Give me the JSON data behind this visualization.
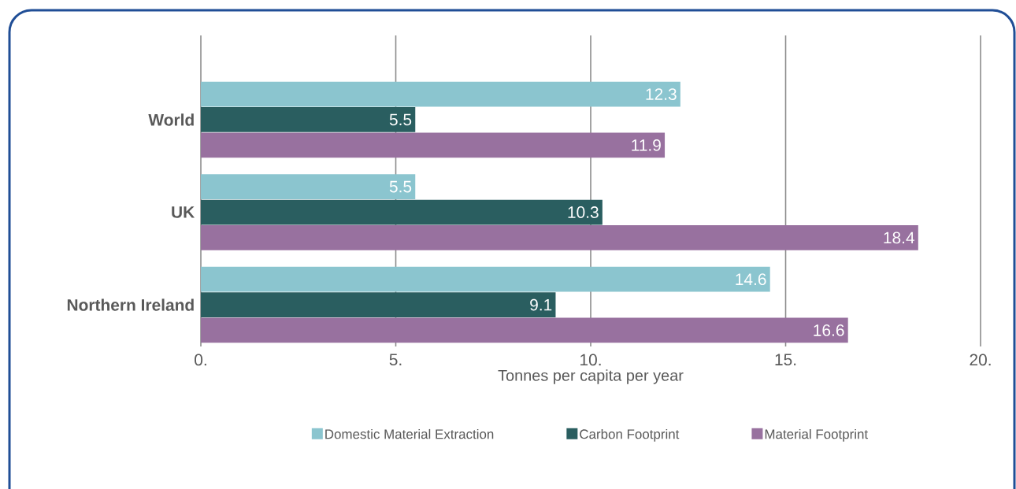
{
  "chart_data": {
    "type": "bar",
    "orientation": "horizontal",
    "xlabel": "Tonnes per capita per year",
    "categories": [
      "World",
      "UK",
      "Northern Ireland"
    ],
    "series": [
      {
        "name": "Domestic Material Extraction",
        "color": "#8bc5cf",
        "values": [
          12.3,
          5.5,
          14.6
        ]
      },
      {
        "name": "Carbon Footprint",
        "color": "#2a5e60",
        "values": [
          5.5,
          10.3,
          9.1
        ]
      },
      {
        "name": "Material Footprint",
        "color": "#98719f",
        "values": [
          11.9,
          18.4,
          16.6
        ]
      }
    ],
    "xlim": [
      0,
      20
    ],
    "xticks": [
      {
        "value": 0,
        "label": "0."
      },
      {
        "value": 5,
        "label": "5."
      },
      {
        "value": 10,
        "label": "10."
      },
      {
        "value": 15,
        "label": "15."
      },
      {
        "value": 20,
        "label": "20."
      }
    ],
    "grid": "x",
    "legend": "bottom",
    "data_labels": true
  }
}
